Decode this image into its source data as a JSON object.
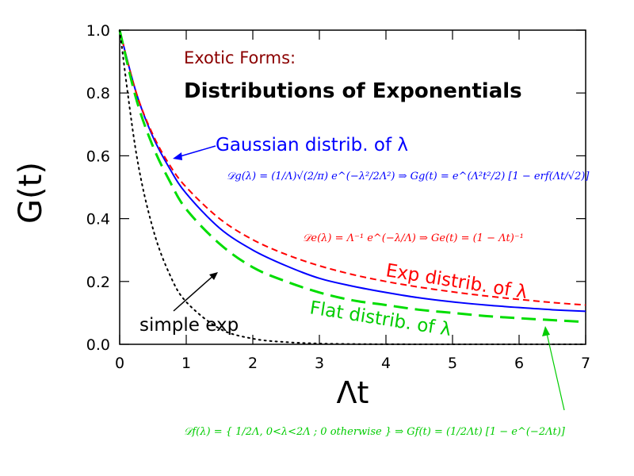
{
  "chart_data": {
    "type": "line",
    "title": "Distributions of Exponentials",
    "subtitle": "Exotic Forms:",
    "xlabel": "Λt",
    "ylabel": "G(t)",
    "xlim": [
      0,
      7
    ],
    "ylim": [
      0,
      1
    ],
    "x_ticks": [
      "0",
      "1",
      "2",
      "3",
      "4",
      "5",
      "6",
      "7"
    ],
    "y_ticks": [
      "0.0",
      "0.2",
      "0.4",
      "0.6",
      "0.8",
      "1.0"
    ],
    "grid": false,
    "x": [
      0,
      0.25,
      0.5,
      0.75,
      1,
      1.5,
      2,
      2.5,
      3,
      3.5,
      4,
      4.5,
      5,
      5.5,
      6,
      6.5,
      7
    ],
    "series": [
      {
        "name": "Gaussian distrib. of λ",
        "color": "#0000ff",
        "dash": "solid",
        "values": [
          1.0,
          0.8,
          0.66,
          0.56,
          0.48,
          0.37,
          0.3,
          0.25,
          0.21,
          0.185,
          0.165,
          0.148,
          0.135,
          0.125,
          0.117,
          0.11,
          0.105
        ]
      },
      {
        "name": "Exp distrib. of λ",
        "color": "#ff0000",
        "dash": "dashed",
        "values": [
          1.0,
          0.8,
          0.667,
          0.571,
          0.5,
          0.4,
          0.333,
          0.286,
          0.25,
          0.222,
          0.2,
          0.182,
          0.167,
          0.154,
          0.143,
          0.133,
          0.125
        ]
      },
      {
        "name": "Flat distrib. of λ",
        "color": "#00dd00",
        "dash": "long-dashed",
        "values": [
          1.0,
          0.78,
          0.63,
          0.52,
          0.43,
          0.32,
          0.245,
          0.2,
          0.165,
          0.14,
          0.125,
          0.11,
          0.1,
          0.09,
          0.083,
          0.077,
          0.071
        ]
      },
      {
        "name": "simple exp",
        "color": "#000000",
        "dash": "dotted",
        "values": [
          1.0,
          0.607,
          0.368,
          0.223,
          0.135,
          0.05,
          0.018,
          0.007,
          0.0025,
          0.0009,
          0.0003,
          0.0001,
          5e-05,
          0,
          0,
          0,
          0
        ]
      }
    ],
    "annotations": {
      "gaussian_label": "Gaussian distrib. of λ",
      "exp_label": "Exp distrib. of λ",
      "flat_label": "Flat distrib. of λ",
      "simple_label": "simple exp",
      "formula_gaussian": "𝒟g(λ) = (1/Λ)√(2/π) e^(−λ²/2Λ²)   ⇒   Gg(t) = e^(Λ²t²/2) [1 − erf(Λt/√2)]",
      "formula_exp": "𝒟e(λ) = Λ⁻¹ e^(−λ/Λ)   ⇒   Ge(t) = (1 − Λt)⁻¹",
      "formula_flat": "𝒟f(λ) = { 1/2Λ, 0<λ<2Λ ; 0 otherwise }   ⇒   Gf(t) = (1/2Λt) [1 − e^(−2Λt)]"
    }
  }
}
